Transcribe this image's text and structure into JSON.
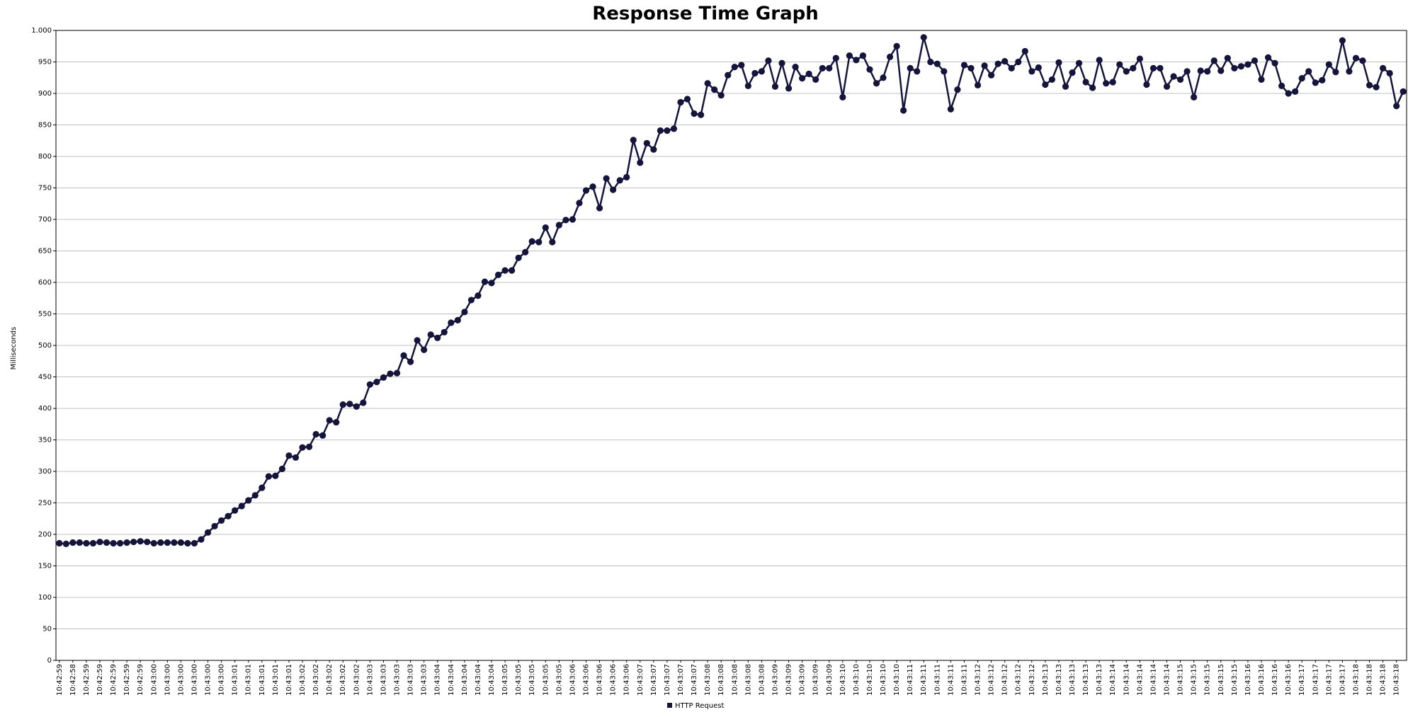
{
  "chart_data": {
    "type": "line",
    "title": "Response Time Graph",
    "y_label": "Milliseconds",
    "categories": [
      "10:42:59",
      null,
      "10:42:58",
      null,
      "10:42:59",
      null,
      "10:42:59",
      null,
      "10:42:59",
      null,
      "10:42:59",
      null,
      "10:42:59",
      null,
      "10:43:00",
      null,
      "10:43:00",
      null,
      "10:43:00",
      null,
      "10:43:00",
      null,
      "10:43:00",
      null,
      "10:43:00",
      null,
      "10:43:01",
      null,
      "10:43:01",
      null,
      "10:43:01",
      null,
      "10:43:01",
      null,
      "10:43:01",
      null,
      "10:43:02",
      null,
      "10:43:02",
      null,
      "10:43:02",
      null,
      "10:43:02",
      null,
      "10:43:02",
      null,
      "10:43:03",
      null,
      "10:43:03",
      null,
      "10:43:03",
      null,
      "10:43:03",
      null,
      "10:43:03",
      null,
      "10:43:04",
      null,
      "10:43:04",
      null,
      "10:43:04",
      null,
      "10:43:04",
      null,
      "10:43:04",
      null,
      "10:43:05",
      null,
      "10:43:05",
      null,
      "10:43:05",
      null,
      "10:43:05",
      null,
      "10:43:05",
      null,
      "10:43:06",
      null,
      "10:43:06",
      null,
      "10:43:06",
      null,
      "10:43:06",
      null,
      "10:43:06",
      null,
      "10:43:07",
      null,
      "10:43:07",
      null,
      "10:43:07",
      null,
      "10:43:07",
      null,
      "10:43:07",
      null,
      "10:43:08",
      null,
      "10:43:08",
      null,
      "10:43:08",
      null,
      "10:43:08",
      null,
      "10:43:08",
      null,
      "10:43:09",
      null,
      "10:43:09",
      null,
      "10:43:09",
      null,
      "10:43:09",
      null,
      "10:43:09",
      null,
      "10:43:10",
      null,
      "10:43:10",
      null,
      "10:43:10",
      null,
      "10:43:10",
      null,
      "10:43:10",
      null,
      "10:43:11",
      null,
      "10:43:11",
      null,
      "10:43:11",
      null,
      "10:43:11",
      null,
      "10:43:11",
      null,
      "10:43:12",
      null,
      "10:43:12",
      null,
      "10:43:12",
      null,
      "10:43:12",
      null,
      "10:43:12",
      null,
      "10:43:13",
      null,
      "10:43:13",
      null,
      "10:43:13",
      null,
      "10:43:13",
      null,
      "10:43:13",
      null,
      "10:43:14",
      null,
      "10:43:14",
      null,
      "10:43:14",
      null,
      "10:43:14",
      null,
      "10:43:14",
      null,
      "10:43:15",
      null,
      "10:43:15",
      null,
      "10:43:15",
      null,
      "10:43:15",
      null,
      "10:43:15",
      null,
      "10:43:16",
      null,
      "10:43:16",
      null,
      "10:43:16",
      null,
      "10:43:16",
      null,
      "10:43:17",
      null,
      "10:43:17",
      null,
      "10:43:17",
      null,
      "10:43:17",
      null,
      "10:43:18",
      null,
      "10:43:18",
      null,
      "10:43:18",
      null,
      "10:43:18",
      null
    ],
    "series": [
      {
        "name": "HTTP Request",
        "color": "#14143c",
        "values": [
          186,
          185,
          187,
          187,
          186,
          186,
          188,
          187,
          186,
          186,
          187,
          188,
          189,
          188,
          186,
          187,
          187,
          187,
          187,
          186,
          186,
          192,
          203,
          213,
          222,
          229,
          238,
          245,
          254,
          262,
          274,
          292,
          293,
          304,
          325,
          322,
          338,
          339,
          359,
          357,
          381,
          378,
          406,
          407,
          403,
          409,
          438,
          442,
          449,
          455,
          456,
          484,
          474,
          508,
          493,
          517,
          512,
          521,
          536,
          540,
          553,
          572,
          579,
          601,
          599,
          612,
          619,
          619,
          639,
          648,
          665,
          664,
          687,
          664,
          691,
          699,
          700,
          726,
          746,
          752,
          718,
          765,
          747,
          762,
          767,
          826,
          790,
          821,
          811,
          841,
          841,
          844,
          886,
          891,
          868,
          866,
          916,
          906,
          897,
          929,
          942,
          945,
          912,
          932,
          935,
          952,
          911,
          948,
          908,
          942,
          924,
          931,
          922,
          940,
          940,
          956,
          894,
          960,
          953,
          960,
          938,
          916,
          925,
          958,
          975,
          873,
          940,
          935,
          989,
          950,
          947,
          935,
          875,
          906,
          945,
          940,
          913,
          944,
          929,
          947,
          951,
          940,
          950,
          967,
          935,
          941,
          914,
          922,
          949,
          911,
          933,
          948,
          918,
          909,
          953,
          916,
          918,
          946,
          935,
          940,
          955,
          914,
          940,
          940,
          911,
          927,
          922,
          935,
          894,
          936,
          935,
          952,
          936,
          956,
          940,
          943,
          946,
          952,
          922,
          957,
          948,
          912,
          900,
          903,
          924,
          935,
          917,
          921,
          946,
          934,
          984,
          935,
          956,
          952,
          913,
          910,
          940,
          932,
          880,
          903
        ]
      }
    ],
    "ylim": [
      0,
      1000
    ],
    "yticks": [
      0,
      50,
      100,
      150,
      200,
      250,
      300,
      350,
      400,
      450,
      500,
      550,
      600,
      650,
      700,
      750,
      800,
      850,
      900,
      950,
      {
        "value": 1000,
        "label": "1.000"
      }
    ],
    "grid": true,
    "legend": "bottom"
  }
}
